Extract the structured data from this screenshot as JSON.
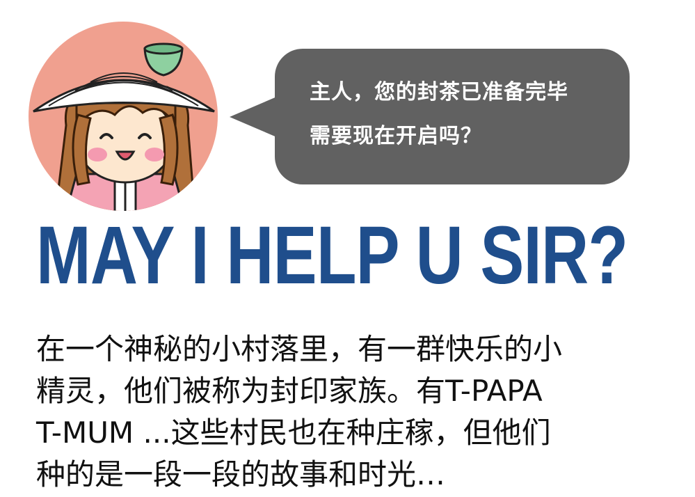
{
  "speech_bubble": {
    "lines": [
      "主人，您的封茶已准备完毕",
      "需要现在开启吗？"
    ],
    "color": "#616161"
  },
  "headline": "MAY I HELP U SIR?",
  "story_lines": [
    "在一个神秘的小村落里，有一群快乐的小",
    "精灵，他们被称为封印家族。有T-PAPA",
    "T-MUM ...这些村民也在种庄稼，但他们",
    "种的是一段一段的故事和时光…"
  ],
  "colors": {
    "avatar_bg": "#f0a08f",
    "headline": "#1f4e8c",
    "teacup": "#8ed0a0"
  }
}
